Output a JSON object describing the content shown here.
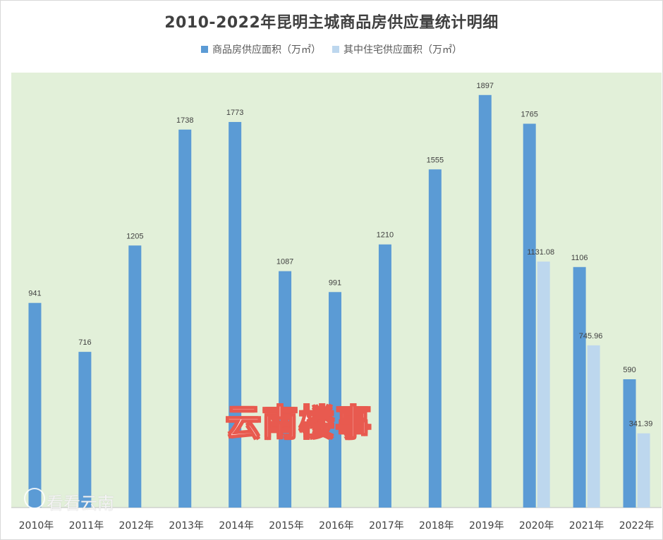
{
  "chart_data": {
    "type": "bar",
    "title": "2010-2022年昆明主城商品房供应量统计明细",
    "categories": [
      "2010年",
      "2011年",
      "2012年",
      "2013年",
      "2014年",
      "2015年",
      "2016年",
      "2017年",
      "2018年",
      "2019年",
      "2020年",
      "2021年",
      "2022年"
    ],
    "series": [
      {
        "name": "商品房供应面积（万㎡）",
        "color": "#5b9bd5",
        "values": [
          941,
          716,
          1205,
          1738,
          1773,
          1087,
          991,
          1210,
          1555,
          1897,
          1765,
          1106,
          590
        ],
        "labels": [
          "941",
          "716",
          "1205",
          "1738",
          "1773",
          "1087",
          "991",
          "1210",
          "1555",
          "1897",
          "1765",
          "1106",
          "590"
        ]
      },
      {
        "name": "其中住宅供应面积（万㎡）",
        "color": "#bdd7ee",
        "values": [
          null,
          null,
          null,
          null,
          null,
          null,
          null,
          null,
          null,
          null,
          1131.08,
          745.96,
          341.39
        ],
        "labels": [
          null,
          null,
          null,
          null,
          null,
          null,
          null,
          null,
          null,
          null,
          "1131.08",
          "745.96",
          "341.39"
        ]
      }
    ],
    "ylim": [
      0,
      2000
    ],
    "grid": false,
    "legend": "top",
    "plot_background": "#e2f0d9"
  },
  "watermark": {
    "main": "云南楼事",
    "corner": "看看云南"
  }
}
